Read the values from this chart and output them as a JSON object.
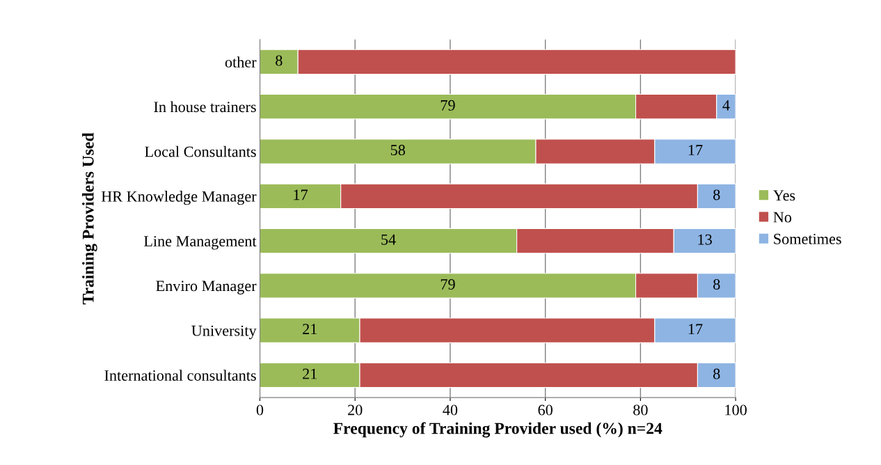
{
  "chart_data": {
    "type": "bar",
    "orientation": "horizontal",
    "stacked": true,
    "categories": [
      "other",
      "In house trainers",
      "Local Consultants",
      "HR Knowledge Manager",
      "Line Management",
      "Enviro Manager",
      "University",
      "International consultants"
    ],
    "series": [
      {
        "name": "Yes",
        "color": "#9bbb59",
        "values": [
          8,
          79,
          58,
          17,
          54,
          79,
          21,
          21
        ],
        "value_labels": [
          "8",
          "79",
          "58",
          "17",
          "54",
          "79",
          "21",
          "21"
        ]
      },
      {
        "name": "No",
        "color": "#c0504d",
        "values": [
          92,
          17,
          25,
          75,
          33,
          13,
          62,
          71
        ]
      },
      {
        "name": "Sometimes",
        "color": "#8eb4e3",
        "values": [
          null,
          4,
          17,
          8,
          13,
          8,
          17,
          8
        ],
        "value_labels": [
          null,
          "4",
          "17",
          "8",
          "13",
          "8",
          "17",
          "8"
        ]
      }
    ],
    "xlabel": "Frequency of Training Provider used (%) n=24",
    "ylabel": "Training Providers Used",
    "xlim": [
      0,
      100
    ],
    "xticks": [
      0,
      20,
      40,
      60,
      80,
      100
    ],
    "grid": "x",
    "legend": "right"
  }
}
